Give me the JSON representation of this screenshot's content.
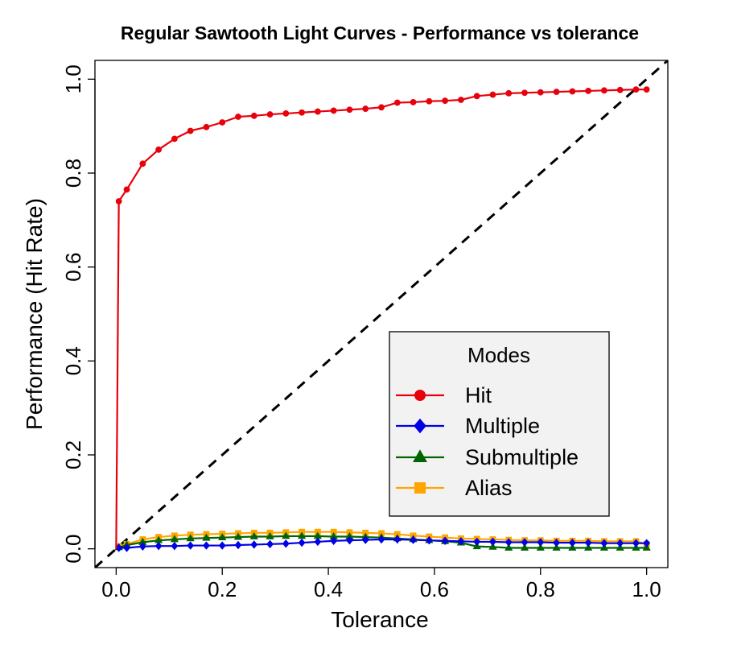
{
  "chart_data": {
    "type": "line",
    "title": "Regular Sawtooth Light Curves - Performance vs tolerance",
    "xlabel": "Tolerance",
    "ylabel": "Performance (Hit Rate)",
    "xlim": [
      -0.04,
      1.04
    ],
    "ylim": [
      -0.04,
      1.04
    ],
    "xticks": [
      "0.0",
      "0.2",
      "0.4",
      "0.6",
      "0.8",
      "1.0"
    ],
    "yticks": [
      "0.0",
      "0.2",
      "0.4",
      "0.6",
      "0.8",
      "1.0"
    ],
    "xtick_values": [
      0,
      0.2,
      0.4,
      0.6,
      0.8,
      1.0
    ],
    "ytick_values": [
      0,
      0.2,
      0.4,
      0.6,
      0.8,
      1.0
    ],
    "reference_line": {
      "from": [
        -0.04,
        -0.04
      ],
      "to": [
        1.04,
        1.04
      ],
      "style": "dashed",
      "color": "#000000"
    },
    "legend": {
      "title": "Modes",
      "position": "bottom-right"
    },
    "x": [
      0.005,
      0.02,
      0.05,
      0.08,
      0.11,
      0.14,
      0.17,
      0.2,
      0.23,
      0.26,
      0.29,
      0.32,
      0.35,
      0.38,
      0.41,
      0.44,
      0.47,
      0.5,
      0.53,
      0.56,
      0.59,
      0.62,
      0.65,
      0.68,
      0.71,
      0.74,
      0.77,
      0.8,
      0.83,
      0.86,
      0.89,
      0.92,
      0.95,
      0.98,
      1.0
    ],
    "series": [
      {
        "name": "Hit",
        "color": "#e8000b",
        "marker": "circle",
        "start": [
          0,
          0
        ],
        "values": [
          0.74,
          0.765,
          0.82,
          0.85,
          0.873,
          0.89,
          0.898,
          0.908,
          0.92,
          0.922,
          0.925,
          0.927,
          0.929,
          0.931,
          0.933,
          0.935,
          0.937,
          0.94,
          0.95,
          0.951,
          0.953,
          0.954,
          0.956,
          0.964,
          0.967,
          0.97,
          0.971,
          0.972,
          0.973,
          0.974,
          0.975,
          0.976,
          0.977,
          0.978,
          0.978
        ]
      },
      {
        "name": "Multiple",
        "color": "#0000e6",
        "marker": "diamond",
        "start": [
          0,
          0
        ],
        "values": [
          0.002,
          0.002,
          0.005,
          0.006,
          0.006,
          0.007,
          0.007,
          0.007,
          0.008,
          0.009,
          0.01,
          0.011,
          0.013,
          0.015,
          0.017,
          0.018,
          0.019,
          0.02,
          0.02,
          0.019,
          0.018,
          0.017,
          0.016,
          0.015,
          0.015,
          0.014,
          0.014,
          0.014,
          0.013,
          0.013,
          0.013,
          0.012,
          0.012,
          0.012,
          0.012
        ]
      },
      {
        "name": "Submultiple",
        "color": "#006400",
        "marker": "triangle",
        "start": [
          0,
          0
        ],
        "values": [
          0.003,
          0.008,
          0.014,
          0.018,
          0.02,
          0.022,
          0.023,
          0.024,
          0.025,
          0.026,
          0.026,
          0.027,
          0.027,
          0.027,
          0.026,
          0.026,
          0.025,
          0.024,
          0.022,
          0.02,
          0.018,
          0.016,
          0.013,
          0.005,
          0.004,
          0.002,
          0.002,
          0.002,
          0.002,
          0.002,
          0.002,
          0.002,
          0.002,
          0.002,
          0.002
        ]
      },
      {
        "name": "Alias",
        "color": "#ffa500",
        "marker": "square",
        "start": [
          0,
          0
        ],
        "values": [
          0.005,
          0.01,
          0.02,
          0.025,
          0.028,
          0.03,
          0.031,
          0.032,
          0.033,
          0.034,
          0.034,
          0.035,
          0.036,
          0.036,
          0.036,
          0.035,
          0.034,
          0.033,
          0.031,
          0.028,
          0.026,
          0.024,
          0.022,
          0.021,
          0.02,
          0.019,
          0.018,
          0.018,
          0.017,
          0.017,
          0.017,
          0.016,
          0.016,
          0.016,
          0.01
        ]
      }
    ]
  }
}
